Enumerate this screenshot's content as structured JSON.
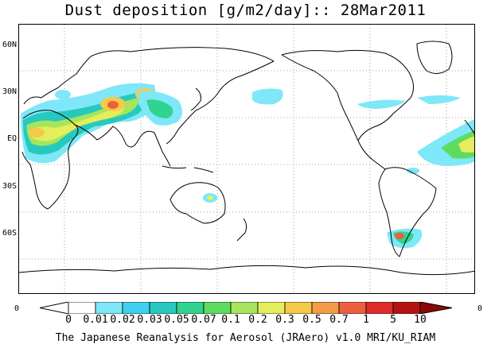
{
  "title": "Dust deposition [g/m2/day]:: 28Mar2011",
  "latitude_labels": [
    "60N",
    "30N",
    "EQ",
    "30S",
    "60S"
  ],
  "legend": {
    "left_edge_value": "0",
    "right_edge_value": "0",
    "ticks": [
      "0",
      "0.01",
      "0.02",
      "0.03",
      "0.05",
      "0.07",
      "0.1",
      "0.2",
      "0.3",
      "0.5",
      "0.7",
      "1",
      "5",
      "10"
    ],
    "colors": [
      "#ffffff",
      "#7ee7f8",
      "#3fd0ef",
      "#27c9bf",
      "#31d390",
      "#5fdb5f",
      "#a6e55c",
      "#e5ee5c",
      "#f5c94a",
      "#f49b45",
      "#ee5f3d",
      "#e02a2a",
      "#b51313",
      "#8b0808"
    ]
  },
  "footer": "The Japanese Reanalysis for Aerosol (JRAero) v1.0 MRI/KU_RIAM"
}
